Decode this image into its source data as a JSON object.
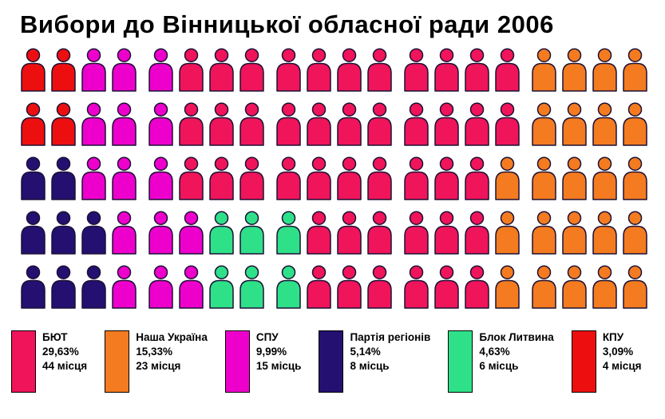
{
  "chart_data": {
    "type": "pictogram",
    "title": "Вибори до Вінницької обласної ради 2006",
    "total_seats": 100,
    "icons_per_row": 20,
    "icon_outline_color": "#1b1135",
    "background_color": "#ffffff",
    "parties": [
      {
        "id": "byut",
        "name": "БЮТ",
        "percent": "29,63%",
        "seats_text": "44 місця",
        "seats": 44,
        "color": "#F0145A"
      },
      {
        "id": "nu",
        "name": "Наша Україна",
        "percent": "15,33%",
        "seats_text": "23 місця",
        "seats": 23,
        "color": "#F47B20"
      },
      {
        "id": "spu",
        "name": "СПУ",
        "percent": "9,99%",
        "seats_text": "15 місць",
        "seats": 15,
        "color": "#EE00CC"
      },
      {
        "id": "pr",
        "name": "Партія регіонів",
        "percent": "5,14%",
        "seats_text": "8 місць",
        "seats": 8,
        "color": "#241070"
      },
      {
        "id": "bl",
        "name": "Блок Литвина",
        "percent": "4,63%",
        "seats_text": "6 місць",
        "seats": 6,
        "color": "#2EE189"
      },
      {
        "id": "kpu",
        "name": "КПУ",
        "percent": "3,09%",
        "seats_text": "4 місця",
        "seats": 4,
        "color": "#ED0F0F"
      }
    ],
    "rows": [
      [
        "kpu",
        "kpu",
        "spu",
        "spu",
        "spu",
        "byut",
        "byut",
        "byut",
        "byut",
        "byut",
        "byut",
        "byut",
        "byut",
        "byut",
        "byut",
        "byut",
        "nu",
        "nu",
        "nu",
        "nu"
      ],
      [
        "kpu",
        "kpu",
        "spu",
        "spu",
        "spu",
        "byut",
        "byut",
        "byut",
        "byut",
        "byut",
        "byut",
        "byut",
        "byut",
        "byut",
        "byut",
        "byut",
        "nu",
        "nu",
        "nu",
        "nu"
      ],
      [
        "pr",
        "pr",
        "spu",
        "spu",
        "spu",
        "byut",
        "byut",
        "byut",
        "byut",
        "byut",
        "byut",
        "byut",
        "byut",
        "byut",
        "byut",
        "nu",
        "nu",
        "nu",
        "nu",
        "nu"
      ],
      [
        "pr",
        "pr",
        "pr",
        "spu",
        "spu",
        "spu",
        "bl",
        "bl",
        "bl",
        "byut",
        "byut",
        "byut",
        "byut",
        "byut",
        "byut",
        "nu",
        "nu",
        "nu",
        "nu",
        "nu"
      ],
      [
        "pr",
        "pr",
        "pr",
        "spu",
        "spu",
        "spu",
        "bl",
        "bl",
        "bl",
        "byut",
        "byut",
        "byut",
        "byut",
        "byut",
        "byut",
        "nu",
        "nu",
        "nu",
        "nu",
        "nu"
      ]
    ]
  }
}
